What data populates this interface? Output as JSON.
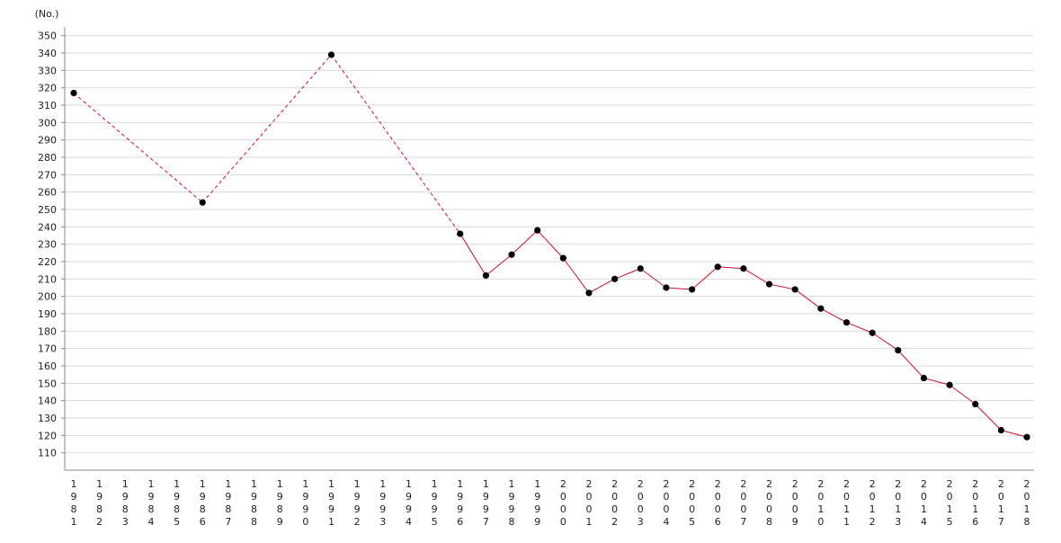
{
  "chart_data": {
    "type": "line",
    "ylabel": "(No.)",
    "ylim": [
      100,
      355
    ],
    "yticks": [
      110,
      120,
      130,
      140,
      150,
      160,
      170,
      180,
      190,
      200,
      210,
      220,
      230,
      240,
      250,
      260,
      270,
      280,
      290,
      300,
      310,
      320,
      330,
      340,
      350
    ],
    "grid": true,
    "categories": [
      "1981",
      "1982",
      "1983",
      "1984",
      "1985",
      "1986",
      "1987",
      "1988",
      "1989",
      "1990",
      "1991",
      "1992",
      "1993",
      "1994",
      "1995",
      "1996",
      "1997",
      "1998",
      "1999",
      "2000",
      "2001",
      "2002",
      "2003",
      "2004",
      "2005",
      "2006",
      "2007",
      "2008",
      "2009",
      "2010",
      "2011",
      "2012",
      "2013",
      "2014",
      "2015",
      "2016",
      "2017",
      "2018"
    ],
    "series": [
      {
        "values": [
          317,
          null,
          null,
          null,
          null,
          254,
          null,
          null,
          null,
          null,
          339,
          null,
          null,
          null,
          null,
          236,
          212,
          224,
          238,
          222,
          202,
          210,
          216,
          205,
          204,
          217,
          216,
          207,
          204,
          193,
          185,
          179,
          169,
          153,
          149,
          138,
          123,
          119
        ],
        "color": "#c8102e",
        "marker_color": "#000000",
        "gap_style": "dashed"
      }
    ]
  }
}
